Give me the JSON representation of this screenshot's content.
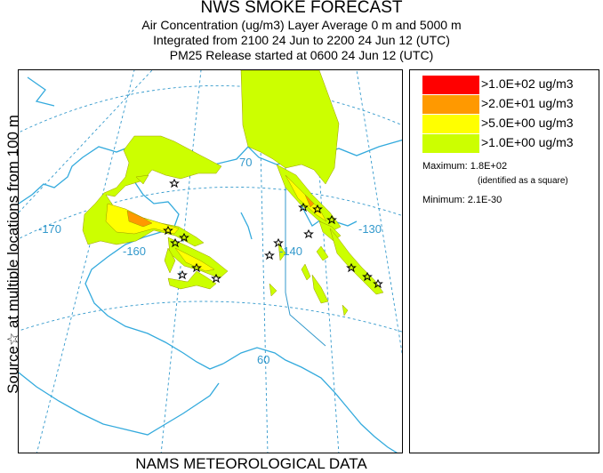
{
  "title": "NWS SMOKE FORECAST",
  "subtitle1": "Air Concentration (ug/m3) Layer Average    0 m and  5000 m",
  "subtitle2": "Integrated from 2100 24 Jun to 2200 24 Jun 12 (UTC)",
  "subtitle3": "PM25 Release started at 0600 24 Jun 12 (UTC)",
  "side_label": "Source☆ at multiple locations  from   100 m",
  "footer": "NAMS METEOROLOGICAL DATA",
  "graticule": {
    "lon_170": "-170",
    "lon_160": "-160",
    "lon_140": "-140",
    "lon_130": "-130",
    "lat_60": "60",
    "lat_70": "70"
  },
  "legend": {
    "items": [
      {
        "label": ">1.0E+02 ug/m3",
        "color": "#ff0000"
      },
      {
        "label": ">2.0E+01 ug/m3",
        "color": "#ff9900"
      },
      {
        "label": ">5.0E+00 ug/m3",
        "color": "#ffff00"
      },
      {
        "label": ">1.0E+00 ug/m3",
        "color": "#ccff00"
      }
    ],
    "maximum": "Maximum: 1.8E+02",
    "max_note": "(identified as a square)",
    "minimum": "Minimum: 2.1E-30"
  },
  "colors": {
    "graticule": "#3399cc",
    "coast": "#33aadd",
    "border": "#3399cc"
  }
}
